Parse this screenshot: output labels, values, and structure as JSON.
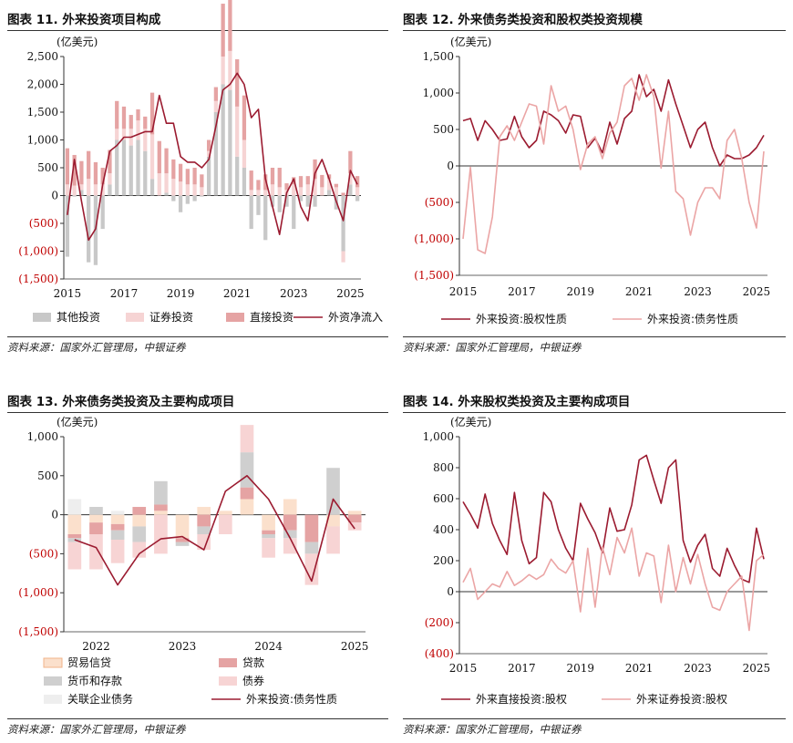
{
  "charts": [
    {
      "id": "c11",
      "title": "图表 11. 外来投资项目构成",
      "source": "资料来源：国家外汇管理局，中银证券",
      "unit": "(亿美元)",
      "chart_data": {
        "type": "bar+line",
        "title": "外来投资项目构成",
        "ylabel": "亿美元",
        "ylim": [
          -1500,
          2500
        ],
        "yticks": [
          2500,
          2000,
          1500,
          1000,
          500,
          0,
          -500,
          -1000,
          -1500
        ],
        "ytick_labels": [
          "2,500",
          "2,000",
          "1,500",
          "1,000",
          "500",
          "0",
          "(500)",
          "(1,000)",
          "(1,500)"
        ],
        "xtick_labels": [
          "2015",
          "2017",
          "2019",
          "2021",
          "2023",
          "2025"
        ],
        "n_points": 42,
        "series": [
          {
            "name": "其他投资",
            "kind": "bar",
            "color": "#c8c8c8",
            "values": [
              -1100,
              -20,
              100,
              -1200,
              -1250,
              -600,
              200,
              1000,
              1000,
              900,
              1000,
              800,
              300,
              0,
              50,
              -100,
              -300,
              -150,
              -100,
              -20,
              700,
              1500,
              2000,
              1900,
              700,
              500,
              -600,
              -350,
              -800,
              -200,
              -300,
              -200,
              -600,
              -100,
              -200,
              -200,
              0,
              100,
              -250,
              -1000,
              200,
              -100
            ]
          },
          {
            "name": "证券投资",
            "kind": "bar",
            "color": "#f6d4d4",
            "values": [
              200,
              180,
              100,
              300,
              200,
              200,
              200,
              200,
              200,
              300,
              350,
              400,
              800,
              400,
              350,
              300,
              250,
              200,
              200,
              150,
              100,
              200,
              500,
              700,
              900,
              500,
              100,
              100,
              100,
              200,
              150,
              100,
              200,
              150,
              200,
              300,
              150,
              200,
              150,
              -200,
              200,
              150
            ]
          },
          {
            "name": "直接投资",
            "kind": "bar",
            "color": "#e5a3a3",
            "values": [
              650,
              550,
              420,
              500,
              400,
              300,
              420,
              500,
              400,
              250,
              200,
              220,
              750,
              580,
              450,
              350,
              320,
              280,
              300,
              230,
              200,
              250,
              950,
              920,
              850,
              800,
              350,
              180,
              280,
              300,
              350,
              120,
              130,
              200,
              150,
              350,
              220,
              80,
              60,
              50,
              400,
              200
            ]
          },
          {
            "name": "外资净流入",
            "kind": "line",
            "color": "#9b1b30",
            "values": [
              -350,
              650,
              -100,
              -800,
              -600,
              200,
              800,
              900,
              1050,
              1050,
              1100,
              1150,
              1150,
              1800,
              1300,
              1300,
              700,
              600,
              600,
              500,
              650,
              1250,
              1900,
              2000,
              2200,
              2000,
              1400,
              1550,
              300,
              -200,
              -700,
              50,
              300,
              -200,
              -450,
              400,
              650,
              300,
              -100,
              -450,
              450,
              200
            ]
          }
        ]
      },
      "legend": [
        {
          "label": "其他投资",
          "color": "#c8c8c8",
          "kind": "box"
        },
        {
          "label": "证券投资",
          "color": "#f6d4d4",
          "kind": "box"
        },
        {
          "label": "直接投资",
          "color": "#e5a3a3",
          "kind": "box"
        },
        {
          "label": "外资净流入",
          "color": "#9b1b30",
          "kind": "line"
        }
      ]
    },
    {
      "id": "c12",
      "title": "图表 12. 外来债务类投资和股权类投资规模",
      "source": "资料来源：国家外汇管理局，中银证券",
      "unit": "(亿美元)",
      "chart_data": {
        "type": "line",
        "title": "外来债务类投资和股权类投资规模",
        "ylabel": "亿美元",
        "ylim": [
          -1500,
          1500
        ],
        "yticks": [
          1500,
          1000,
          500,
          0,
          -500,
          -1000,
          -1500
        ],
        "ytick_labels": [
          "1,500",
          "1,000",
          "500",
          "0",
          "(500)",
          "(1,000)",
          "(1,500)"
        ],
        "xtick_labels": [
          "2015",
          "2017",
          "2019",
          "2021",
          "2023",
          "2025"
        ],
        "n_points": 42,
        "series": [
          {
            "name": "外来投资:股权性质",
            "color": "#9b1b30",
            "values": [
              620,
              650,
              350,
              620,
              500,
              350,
              370,
              680,
              400,
              250,
              350,
              750,
              700,
              620,
              450,
              700,
              680,
              250,
              380,
              180,
              600,
              300,
              650,
              750,
              1250,
              950,
              1050,
              750,
              1180,
              850,
              550,
              250,
              500,
              600,
              250,
              0,
              150,
              100,
              100,
              150,
              250,
              420
            ]
          },
          {
            "name": "外来投资:债务性质",
            "color": "#eba5a5",
            "values": [
              -1000,
              -20,
              -1150,
              -1200,
              -700,
              400,
              550,
              350,
              600,
              850,
              820,
              300,
              1100,
              750,
              820,
              500,
              -50,
              300,
              400,
              100,
              450,
              600,
              1100,
              1200,
              900,
              1250,
              950,
              -30,
              750,
              -350,
              -450,
              -950,
              -500,
              -300,
              -300,
              -450,
              350,
              500,
              100,
              -500,
              -850,
              200
            ]
          }
        ]
      },
      "legend": [
        {
          "label": "外来投资:股权性质",
          "color": "#9b1b30",
          "kind": "line"
        },
        {
          "label": "外来投资:债务性质",
          "color": "#eba5a5",
          "kind": "line"
        }
      ]
    },
    {
      "id": "c13",
      "title": "图表 13. 外来债务类投资及主要构成项目",
      "source": "资料来源：国家外汇管理局，中银证券",
      "unit": "(亿美元)",
      "chart_data": {
        "type": "bar+line",
        "title": "外来债务类投资及主要构成项目",
        "ylabel": "亿美元",
        "ylim": [
          -1500,
          1000
        ],
        "yticks": [
          1000,
          500,
          0,
          -500,
          -1000,
          -1500
        ],
        "ytick_labels": [
          "1,000",
          "500",
          "0",
          "(500)",
          "(1,000)",
          "(1,500)"
        ],
        "xtick_labels": [
          "2022",
          "2023",
          "2024",
          "2025"
        ],
        "n_points": 14,
        "series": [
          {
            "name": "贸易信贷",
            "kind": "bar",
            "color": "#fbe0cc",
            "values": [
              -250,
              -100,
              -120,
              -150,
              50,
              -300,
              100,
              50,
              200,
              -200,
              200,
              0,
              -150,
              50
            ]
          },
          {
            "name": "贷款",
            "kind": "bar",
            "color": "#e5a3a3",
            "values": [
              -50,
              -150,
              -80,
              100,
              80,
              -50,
              -150,
              0,
              150,
              -50,
              -200,
              -350,
              0,
              -100
            ]
          },
          {
            "name": "货币和存款",
            "kind": "bar",
            "color": "#cfcfcf",
            "values": [
              -50,
              100,
              -120,
              -200,
              300,
              -50,
              -100,
              0,
              450,
              -50,
              -100,
              -150,
              600,
              0
            ]
          },
          {
            "name": "债券",
            "kind": "bar",
            "color": "#f7d4d4",
            "values": [
              -350,
              -450,
              -300,
              -200,
              -500,
              0,
              -200,
              -250,
              350,
              -250,
              -200,
              -400,
              -350,
              -100
            ]
          },
          {
            "name": "关联企业债务",
            "kind": "bar",
            "color": "#eeeeee",
            "values": [
              200,
              0,
              50,
              0,
              0,
              0,
              0,
              0,
              0,
              0,
              0,
              0,
              0,
              0
            ]
          },
          {
            "name": "外来投资:债务性质",
            "kind": "line",
            "color": "#9b1b30",
            "values": [
              -320,
              -420,
              -900,
              -500,
              -310,
              -280,
              -450,
              300,
              500,
              200,
              -300,
              -850,
              200,
              -180
            ]
          }
        ]
      },
      "legend": [
        {
          "label": "贸易信贷",
          "color": "#fbe0cc",
          "kind": "box"
        },
        {
          "label": "贷款",
          "color": "#e5a3a3",
          "kind": "box"
        },
        {
          "label": "货币和存款",
          "color": "#cfcfcf",
          "kind": "box"
        },
        {
          "label": "债券",
          "color": "#f7d4d4",
          "kind": "box"
        },
        {
          "label": "关联企业债务",
          "color": "#eeeeee",
          "kind": "box"
        },
        {
          "label": "外来投资:债务性质",
          "color": "#9b1b30",
          "kind": "line"
        }
      ]
    },
    {
      "id": "c14",
      "title": "图表 14. 外来股权类投资及主要构成项目",
      "source": "资料来源：国家外汇管理局，中银证券",
      "unit": "(亿美元)",
      "chart_data": {
        "type": "line",
        "title": "外来股权类投资及主要构成项目",
        "ylabel": "亿美元",
        "ylim": [
          -400,
          1000
        ],
        "yticks": [
          1000,
          800,
          600,
          400,
          200,
          0,
          -200,
          -400
        ],
        "ytick_labels": [
          "1,000",
          "800",
          "600",
          "400",
          "200",
          "0",
          "(200)",
          "(400)"
        ],
        "xtick_labels": [
          "2015",
          "2017",
          "2019",
          "2021",
          "2023",
          "2025"
        ],
        "n_points": 42,
        "series": [
          {
            "name": "外来直接投资:股权",
            "color": "#9b1b30",
            "values": [
              580,
              500,
              410,
              630,
              440,
              330,
              240,
              640,
              330,
              180,
              220,
              640,
              580,
              400,
              280,
              200,
              570,
              470,
              380,
              250,
              540,
              390,
              400,
              560,
              850,
              880,
              720,
              570,
              800,
              850,
              330,
              190,
              300,
              370,
              150,
              100,
              280,
              170,
              80,
              60,
              410,
              210
            ]
          },
          {
            "name": "外来证券投资:股权",
            "color": "#eba5a5",
            "values": [
              60,
              150,
              -50,
              0,
              50,
              30,
              130,
              40,
              70,
              110,
              80,
              110,
              210,
              150,
              120,
              200,
              -130,
              280,
              -100,
              290,
              110,
              350,
              250,
              410,
              100,
              250,
              230,
              -70,
              300,
              0,
              220,
              50,
              240,
              50,
              -100,
              -120,
              0,
              50,
              100,
              -250,
              200,
              240
            ]
          }
        ]
      },
      "legend": [
        {
          "label": "外来直接投资:股权",
          "color": "#9b1b30",
          "kind": "line"
        },
        {
          "label": "外来证券投资:股权",
          "color": "#eba5a5",
          "kind": "line"
        }
      ]
    }
  ]
}
